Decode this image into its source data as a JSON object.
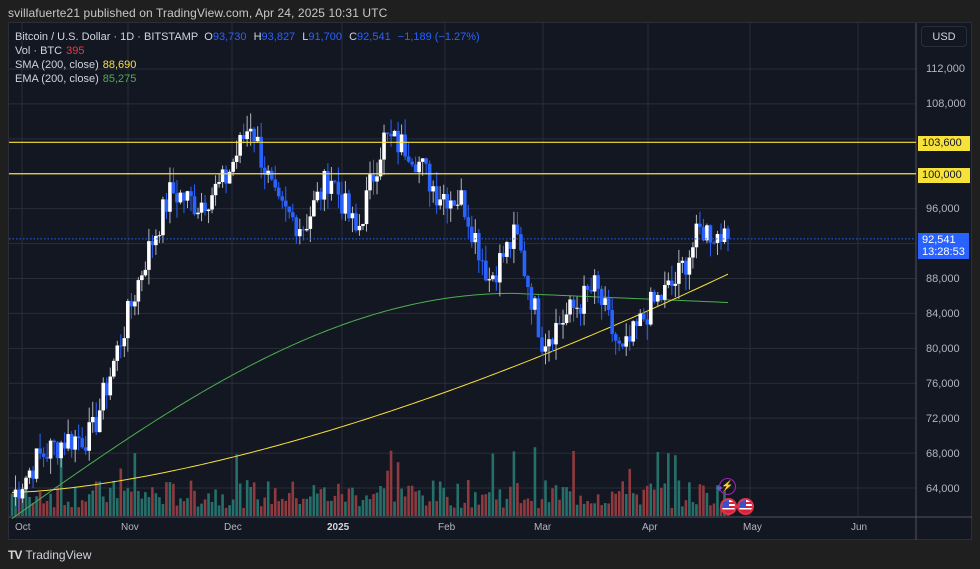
{
  "header": {
    "publisher_line": "svillafuerte21 published on TradingView.com, Apr 24, 2025 10:31 UTC"
  },
  "legend": {
    "symbol": "Bitcoin / U.S. Dollar · 1D · BITSTAMP",
    "open_label": "O",
    "open": "93,730",
    "high_label": "H",
    "high": "93,827",
    "low_label": "L",
    "low": "91,700",
    "close_label": "C",
    "close": "92,541",
    "change": "−1,189 (−1.27%)",
    "vol_label": "Vol · BTC",
    "vol": "395",
    "sma_label": "SMA (200, close)",
    "sma": "88,690",
    "ema_label": "EMA (200, close)",
    "ema": "85,275"
  },
  "currency_button": "USD",
  "price_axis": {
    "ticks": [
      "112,000",
      "108,000",
      "96,000",
      "88,000",
      "84,000",
      "80,000",
      "76,000",
      "72,000",
      "68,000",
      "64,000"
    ],
    "tags": {
      "level_1": "103,600",
      "level_2": "100,000",
      "last_price": "92,541",
      "countdown": "13:28:53"
    }
  },
  "time_axis": {
    "labels": [
      "Oct",
      "Nov",
      "Dec",
      "2025",
      "Feb",
      "Mar",
      "Apr",
      "May",
      "Jun"
    ]
  },
  "footer": {
    "brand": "TradingView",
    "brand_mark": "TV"
  },
  "colors": {
    "up_candle": "#ffffff",
    "down_candle": "#2962ff",
    "sma": "#f7e13b",
    "ema": "#4caf50",
    "vol_up": "#26706b",
    "vol_down": "#8e3a3e",
    "horizontal_levels": "#f7e13b",
    "last_price_line": "#2962ff",
    "background": "#131722"
  },
  "chart_data": {
    "type": "candlestick",
    "title": "Bitcoin / U.S. Dollar · 1D · BITSTAMP",
    "xlabel": "",
    "ylabel": "USD",
    "ylim": [
      60800,
      114000
    ],
    "x_ticks": [
      "Oct",
      "Nov",
      "Dec",
      "2025",
      "Feb",
      "Mar",
      "Apr",
      "May",
      "Jun"
    ],
    "y_ticks": [
      64000,
      68000,
      72000,
      76000,
      80000,
      84000,
      88000,
      92000,
      96000,
      100000,
      104000,
      108000,
      112000
    ],
    "horizontal_levels": [
      103600,
      100000
    ],
    "last": {
      "open": 93730,
      "high": 93827,
      "low": 91700,
      "close": 92541,
      "change": -1189,
      "change_pct": -1.27,
      "volume": 395
    },
    "indicators": {
      "sma_200": 88690,
      "ema_200": 85275
    },
    "closes_weekly_approx": [
      {
        "date": "Oct",
        "close": 63000
      },
      {
        "date": "mid Oct",
        "close": 67500
      },
      {
        "date": "late Oct",
        "close": 69500
      },
      {
        "date": "Nov 1",
        "close": 70000
      },
      {
        "date": "Nov 10",
        "close": 80000
      },
      {
        "date": "Nov 15",
        "close": 90000
      },
      {
        "date": "Nov 22",
        "close": 98000
      },
      {
        "date": "Dec 1",
        "close": 96500
      },
      {
        "date": "Dec 10",
        "close": 99000
      },
      {
        "date": "Dec 17",
        "close": 106000
      },
      {
        "date": "Dec 25",
        "close": 96000
      },
      {
        "date": "Jan 1",
        "close": 94000
      },
      {
        "date": "Jan 7",
        "close": 100000
      },
      {
        "date": "Jan 13",
        "close": 93000
      },
      {
        "date": "Jan 20",
        "close": 104000
      },
      {
        "date": "Jan 27",
        "close": 103000
      },
      {
        "date": "Feb 3",
        "close": 98000
      },
      {
        "date": "Feb 14",
        "close": 97000
      },
      {
        "date": "Feb 24",
        "close": 88000
      },
      {
        "date": "Mar 2",
        "close": 93000
      },
      {
        "date": "Mar 10",
        "close": 81000
      },
      {
        "date": "Mar 20",
        "close": 84000
      },
      {
        "date": "Mar 28",
        "close": 87000
      },
      {
        "date": "Apr 7",
        "close": 79000
      },
      {
        "date": "Apr 14",
        "close": 84500
      },
      {
        "date": "Apr 21",
        "close": 87500
      },
      {
        "date": "Apr 23",
        "close": 93700
      },
      {
        "date": "Apr 24",
        "close": 92541
      }
    ],
    "volume_bars_visible": true,
    "grid": true
  }
}
